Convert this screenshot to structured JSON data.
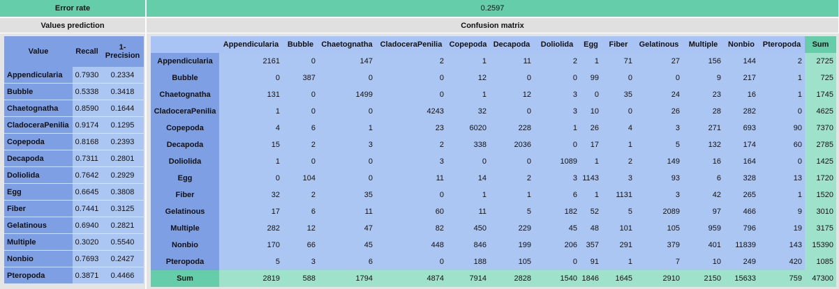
{
  "error_rate": {
    "label": "Error rate",
    "value": "0.2597"
  },
  "values_prediction": {
    "title": "Values prediction",
    "columns": [
      "Value",
      "Recall",
      "1-Precision"
    ],
    "rows": [
      [
        "Appendicularia",
        "0.7930",
        "0.2334"
      ],
      [
        "Bubble",
        "0.5338",
        "0.3418"
      ],
      [
        "Chaetognatha",
        "0.8590",
        "0.1644"
      ],
      [
        "CladoceraPenilia",
        "0.9174",
        "0.1295"
      ],
      [
        "Copepoda",
        "0.8168",
        "0.2393"
      ],
      [
        "Decapoda",
        "0.7311",
        "0.2801"
      ],
      [
        "Doliolida",
        "0.7642",
        "0.2929"
      ],
      [
        "Egg",
        "0.6645",
        "0.3808"
      ],
      [
        "Fiber",
        "0.7441",
        "0.3125"
      ],
      [
        "Gelatinous",
        "0.6940",
        "0.2821"
      ],
      [
        "Multiple",
        "0.3020",
        "0.5540"
      ],
      [
        "Nonbio",
        "0.7693",
        "0.2427"
      ],
      [
        "Pteropoda",
        "0.3871",
        "0.4466"
      ]
    ]
  },
  "confusion_matrix": {
    "title": "Confusion matrix",
    "columns": [
      "Appendicularia",
      "Bubble",
      "Chaetognatha",
      "CladoceraPenilia",
      "Copepoda",
      "Decapoda",
      "Doliolida",
      "Egg",
      "Fiber",
      "Gelatinous",
      "Multiple",
      "Nonbio",
      "Pteropoda",
      "Sum"
    ],
    "rows": [
      {
        "label": "Appendicularia",
        "values": [
          2161,
          0,
          147,
          2,
          1,
          11,
          2,
          1,
          71,
          27,
          156,
          144,
          2,
          2725
        ]
      },
      {
        "label": "Bubble",
        "values": [
          0,
          387,
          0,
          0,
          12,
          0,
          0,
          99,
          0,
          0,
          9,
          217,
          1,
          725
        ]
      },
      {
        "label": "Chaetognatha",
        "values": [
          131,
          0,
          1499,
          0,
          1,
          12,
          3,
          0,
          35,
          24,
          23,
          16,
          1,
          1745
        ]
      },
      {
        "label": "CladoceraPenilia",
        "values": [
          1,
          0,
          0,
          4243,
          32,
          0,
          3,
          10,
          0,
          26,
          28,
          282,
          0,
          4625
        ]
      },
      {
        "label": "Copepoda",
        "values": [
          4,
          6,
          1,
          23,
          6020,
          228,
          1,
          26,
          4,
          3,
          271,
          693,
          90,
          7370
        ]
      },
      {
        "label": "Decapoda",
        "values": [
          15,
          2,
          3,
          2,
          338,
          2036,
          0,
          17,
          1,
          5,
          132,
          174,
          60,
          2785
        ]
      },
      {
        "label": "Doliolida",
        "values": [
          1,
          0,
          0,
          3,
          0,
          0,
          1089,
          1,
          2,
          149,
          16,
          164,
          0,
          1425
        ]
      },
      {
        "label": "Egg",
        "values": [
          0,
          104,
          0,
          11,
          14,
          2,
          3,
          1143,
          3,
          93,
          6,
          328,
          13,
          1720
        ]
      },
      {
        "label": "Fiber",
        "values": [
          32,
          2,
          35,
          0,
          1,
          1,
          6,
          1,
          1131,
          3,
          42,
          265,
          1,
          1520
        ]
      },
      {
        "label": "Gelatinous",
        "values": [
          17,
          6,
          11,
          60,
          11,
          5,
          182,
          52,
          5,
          2089,
          97,
          466,
          9,
          3010
        ]
      },
      {
        "label": "Multiple",
        "values": [
          282,
          12,
          47,
          82,
          450,
          229,
          45,
          48,
          101,
          105,
          959,
          796,
          19,
          3175
        ]
      },
      {
        "label": "Nonbio",
        "values": [
          170,
          66,
          45,
          448,
          846,
          199,
          206,
          357,
          291,
          379,
          401,
          11839,
          143,
          15390
        ]
      },
      {
        "label": "Pteropoda",
        "values": [
          5,
          3,
          6,
          0,
          188,
          105,
          0,
          91,
          1,
          7,
          10,
          249,
          420,
          1085
        ]
      },
      {
        "label": "Sum",
        "values": [
          2819,
          588,
          1794,
          4874,
          7914,
          2828,
          1540,
          1846,
          1645,
          2910,
          2150,
          15633,
          759,
          47300
        ]
      }
    ]
  }
}
